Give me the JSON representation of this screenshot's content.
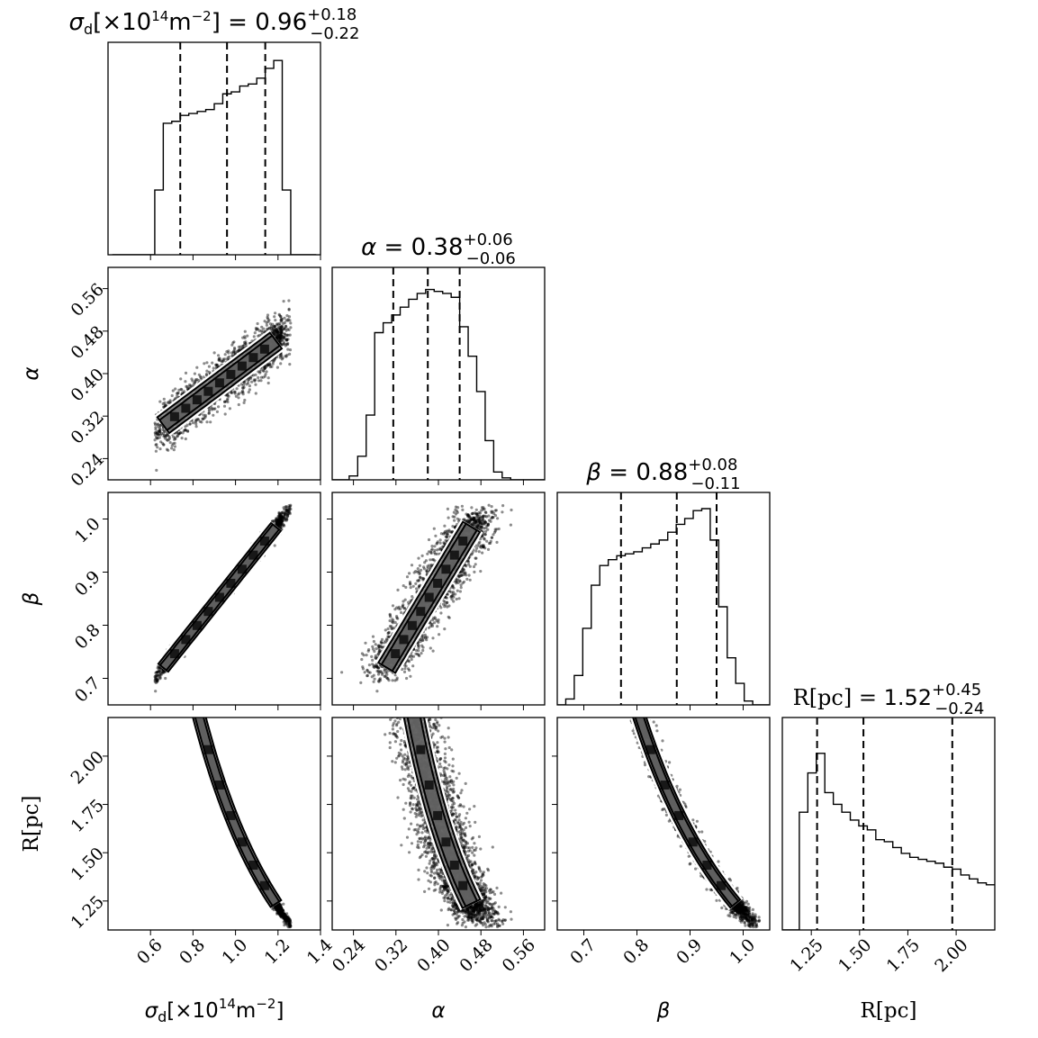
{
  "chart_data": {
    "type": "corner",
    "parameters": [
      {
        "key": "sigma_d",
        "symbol": "σ",
        "subscript": "d",
        "unit_prefix": "[×10",
        "unit_exp": "14",
        "unit_mid": "m",
        "unit_exp2": "−2",
        "unit_suffix": "]",
        "range": [
          0.4,
          1.4
        ],
        "ticks": [
          0.6,
          0.8,
          1.0,
          1.2,
          1.4
        ],
        "tick_labels": [
          "0.6",
          "0.8",
          "1.0",
          "1.2",
          "1.4"
        ],
        "median": "0.96",
        "plus": "+0.18",
        "minus": "−0.22",
        "quantiles": [
          0.74,
          0.96,
          1.14
        ],
        "hist": {
          "edges": [
            0.42,
            0.46,
            0.5,
            0.54,
            0.58,
            0.62,
            0.66,
            0.7,
            0.74,
            0.78,
            0.82,
            0.86,
            0.9,
            0.94,
            0.98,
            1.02,
            1.06,
            1.1,
            1.14,
            1.18,
            1.22,
            1.26,
            1.3,
            1.34,
            1.38
          ],
          "counts": [
            0,
            0,
            0,
            0,
            0,
            0.33,
            0.67,
            0.68,
            0.71,
            0.72,
            0.73,
            0.74,
            0.77,
            0.82,
            0.83,
            0.86,
            0.87,
            0.9,
            0.95,
            0.99,
            0.33,
            0,
            0,
            0
          ]
        }
      },
      {
        "key": "alpha",
        "symbol": "α",
        "range": [
          0.2,
          0.6
        ],
        "ticks": [
          0.24,
          0.32,
          0.4,
          0.48,
          0.56
        ],
        "tick_labels": [
          "0.24",
          "0.32",
          "0.40",
          "0.48",
          "0.56"
        ],
        "median": "0.38",
        "plus": "+0.06",
        "minus": "−0.06",
        "quantiles": [
          0.315,
          0.38,
          0.44
        ],
        "hist": {
          "edges": [
            0.2,
            0.216,
            0.232,
            0.248,
            0.264,
            0.28,
            0.296,
            0.312,
            0.328,
            0.344,
            0.36,
            0.376,
            0.392,
            0.408,
            0.424,
            0.44,
            0.456,
            0.472,
            0.488,
            0.504,
            0.52,
            0.536,
            0.552,
            0.568,
            0.584,
            0.6
          ],
          "counts": [
            0,
            0,
            0.02,
            0.12,
            0.33,
            0.75,
            0.8,
            0.84,
            0.88,
            0.92,
            0.95,
            0.97,
            0.96,
            0.95,
            0.93,
            0.78,
            0.63,
            0.45,
            0.2,
            0.04,
            0.01,
            0,
            0,
            0,
            0
          ]
        }
      },
      {
        "key": "beta",
        "symbol": "β",
        "range": [
          0.65,
          1.05
        ],
        "ticks": [
          0.7,
          0.8,
          0.9,
          1.0
        ],
        "tick_labels": [
          "0.7",
          "0.8",
          "0.9",
          "1.0"
        ],
        "median": "0.88",
        "plus": "+0.08",
        "minus": "−0.11",
        "quantiles": [
          0.77,
          0.875,
          0.95
        ],
        "hist": {
          "edges": [
            0.65,
            0.666,
            0.682,
            0.698,
            0.714,
            0.73,
            0.746,
            0.762,
            0.778,
            0.794,
            0.81,
            0.826,
            0.842,
            0.858,
            0.874,
            0.89,
            0.906,
            0.922,
            0.938,
            0.954,
            0.97,
            0.986,
            1.002,
            1.018,
            1.034,
            1.05
          ],
          "counts": [
            0,
            0.03,
            0.15,
            0.39,
            0.61,
            0.71,
            0.74,
            0.76,
            0.77,
            0.78,
            0.8,
            0.82,
            0.84,
            0.88,
            0.92,
            0.95,
            0.99,
            1.0,
            0.84,
            0.5,
            0.24,
            0.11,
            0.02,
            0,
            0
          ]
        }
      },
      {
        "key": "R",
        "symbol": "R",
        "unit_suffix": "[pc]",
        "range": [
          1.1,
          2.2
        ],
        "ticks": [
          1.25,
          1.5,
          1.75,
          2.0
        ],
        "tick_labels": [
          "1.25",
          "1.50",
          "1.75",
          "2.00"
        ],
        "median": "1.52",
        "plus": "+0.45",
        "minus": "−0.24",
        "quantiles": [
          1.28,
          1.52,
          1.98
        ],
        "hist": {
          "edges": [
            1.1,
            1.144,
            1.188,
            1.232,
            1.276,
            1.32,
            1.364,
            1.408,
            1.452,
            1.496,
            1.54,
            1.584,
            1.628,
            1.672,
            1.716,
            1.76,
            1.804,
            1.848,
            1.892,
            1.936,
            1.98,
            2.024,
            2.068,
            2.112,
            2.156,
            2.2
          ],
          "counts": [
            0,
            0,
            0.6,
            0.8,
            0.9,
            0.7,
            0.64,
            0.6,
            0.56,
            0.53,
            0.51,
            0.46,
            0.45,
            0.42,
            0.39,
            0.37,
            0.36,
            0.35,
            0.34,
            0.32,
            0.31,
            0.28,
            0.26,
            0.24,
            0.23
          ]
        }
      }
    ],
    "contour_levels": "inner and outer density contours (approx.)",
    "grid": false
  }
}
